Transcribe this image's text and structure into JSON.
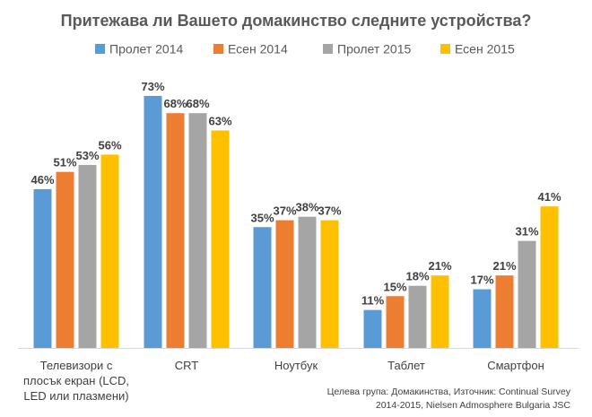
{
  "chart_data": {
    "type": "bar",
    "title": "Притежава ли Вашето домакинство следните устройства?",
    "categories": [
      [
        "Телевизори с",
        "плосък екран (LCD,",
        "LED или плазмени)"
      ],
      [
        "CRT"
      ],
      [
        "Ноутбук"
      ],
      [
        "Таблет"
      ],
      [
        "Смартфон"
      ]
    ],
    "series": [
      {
        "name": "Пролет 2014",
        "color": "#5B9BD5",
        "values": [
          46,
          73,
          35,
          11,
          17
        ],
        "labels": [
          "46%",
          "73%",
          "35%",
          "11%",
          "17%"
        ]
      },
      {
        "name": "Есен 2014",
        "color": "#ED7D31",
        "values": [
          51,
          68,
          37,
          15,
          21
        ],
        "labels": [
          "51%",
          "68%",
          "37%",
          "15%",
          "21%"
        ]
      },
      {
        "name": "Пролет 2015",
        "color": "#A5A5A5",
        "values": [
          53,
          68,
          38,
          18,
          31
        ],
        "labels": [
          "53%",
          "68%",
          "38%",
          "18%",
          "31%"
        ]
      },
      {
        "name": "Есен 2015",
        "color": "#FFC000",
        "values": [
          56,
          63,
          37,
          21,
          41
        ],
        "labels": [
          "56%",
          "63%",
          "37%",
          "21%",
          "41%"
        ]
      }
    ],
    "ylim": [
      0,
      75
    ],
    "grid": false,
    "legend": "top",
    "xlabel": "",
    "ylabel": ""
  },
  "source": {
    "line1": "Целева група: Домакинства, Източник: Continual Survey",
    "line2": "2014-2015, Nielsen Admosphere Bulgaria JSC"
  }
}
